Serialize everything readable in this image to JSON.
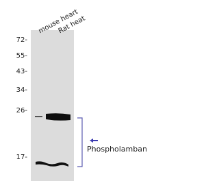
{
  "lanes": [
    "mouse heart",
    "Rat heat"
  ],
  "markers": [
    "72-",
    "55-",
    "43-",
    "34-",
    "26-",
    "17-"
  ],
  "annotation": "Phospholamban"
}
